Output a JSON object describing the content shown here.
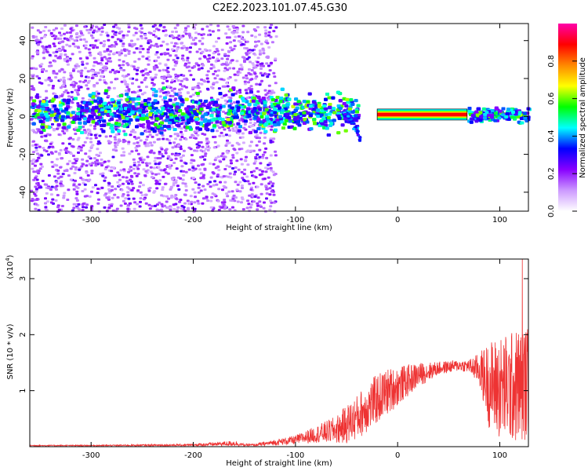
{
  "figure": {
    "title": "C2E2.2023.101.07.45.G30"
  },
  "chart_data": [
    {
      "type": "heatmap",
      "xlabel": "Height of straight line (km)",
      "ylabel": "Frequency (Hz)",
      "xlim": [
        -360,
        128
      ],
      "ylim": [
        -50,
        49
      ],
      "xticks": [
        -300,
        -200,
        -100,
        0,
        100
      ],
      "yticks": [
        -40,
        -20,
        0,
        20,
        40
      ],
      "colorbar": {
        "label": "Normalized spectral amplitude",
        "range": [
          0,
          1
        ],
        "ticks": [
          0.0,
          0.2,
          0.4,
          0.6,
          0.8
        ],
        "colors": [
          "#ffffff",
          "#cc99ff",
          "#8800ff",
          "#0000ff",
          "#00ffff",
          "#00ff00",
          "#ffff00",
          "#ff8800",
          "#ff0000",
          "#ff00aa"
        ]
      },
      "features": {
        "strong_band": {
          "x": [
            -20,
            68
          ],
          "freq": 1,
          "amplitude": 0.9
        },
        "diffuse_band": {
          "x": [
            -360,
            128
          ],
          "freq_center": 3,
          "freq_width": 15
        },
        "scatter_region": {
          "x": [
            -360,
            -120
          ],
          "freq": [
            -50,
            49
          ]
        },
        "descending_arc": {
          "x": [
            -55,
            -38
          ],
          "freq": [
            2,
            -12
          ]
        }
      }
    },
    {
      "type": "line",
      "xlabel": "Height of straight line (km)",
      "ylabel": "SNR (10 * v/v)",
      "y_multiplier_label": "(x10",
      "y_multiplier_exp": "4",
      "y_multiplier_close": ")",
      "xlim": [
        -360,
        128
      ],
      "ylim": [
        0,
        3.35
      ],
      "xticks": [
        -300,
        -200,
        -100,
        0,
        100
      ],
      "yticks": [
        1,
        2,
        3
      ],
      "color": "#ee3333",
      "envelope": {
        "x": [
          -360,
          -300,
          -200,
          -160,
          -150,
          -140,
          -100,
          -80,
          -60,
          -50,
          -40,
          -30,
          -20,
          -10,
          0,
          20,
          40,
          60,
          70,
          80,
          90,
          100,
          110,
          120,
          128
        ],
        "center": [
          0.02,
          0.02,
          0.03,
          0.06,
          0.03,
          0.03,
          0.12,
          0.22,
          0.3,
          0.4,
          0.52,
          0.7,
          0.85,
          0.98,
          1.08,
          1.28,
          1.4,
          1.45,
          1.44,
          1.38,
          1.1,
          1.05,
          1.05,
          1.1,
          1.15
        ],
        "spread": [
          0.01,
          0.01,
          0.02,
          0.05,
          0.02,
          0.02,
          0.08,
          0.15,
          0.25,
          0.35,
          0.4,
          0.45,
          0.45,
          0.42,
          0.35,
          0.22,
          0.12,
          0.1,
          0.12,
          0.3,
          0.8,
          0.95,
          1.0,
          1.05,
          1.0
        ]
      },
      "peak": {
        "x": 122,
        "y": 3.35
      }
    }
  ]
}
